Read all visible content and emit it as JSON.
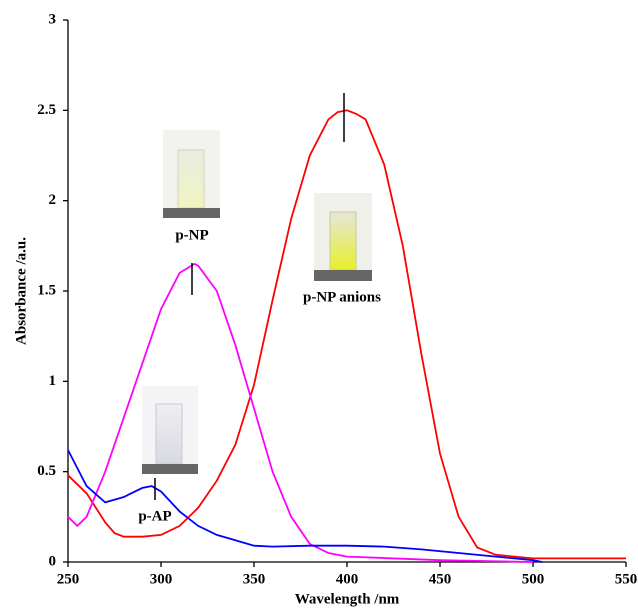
{
  "chart_data": {
    "type": "line",
    "xlabel": "Wavelength /nm",
    "ylabel": "Absorbance /a.u.",
    "xlim": [
      250,
      550
    ],
    "xticks": [
      250,
      300,
      350,
      400,
      450,
      500,
      550
    ],
    "ylim": [
      0,
      3
    ],
    "yticks": [
      0,
      0.5,
      1,
      1.5,
      2,
      2.5,
      3
    ],
    "grid": false,
    "series": [
      {
        "name": "p-NP anions",
        "color": "#ff0000",
        "x": [
          250,
          260,
          270,
          275,
          280,
          290,
          300,
          310,
          320,
          330,
          340,
          350,
          360,
          370,
          380,
          390,
          395,
          400,
          405,
          410,
          420,
          430,
          440,
          450,
          460,
          470,
          480,
          490,
          500,
          550
        ],
        "values": [
          0.48,
          0.38,
          0.22,
          0.16,
          0.14,
          0.14,
          0.15,
          0.2,
          0.3,
          0.45,
          0.65,
          0.98,
          1.45,
          1.9,
          2.25,
          2.45,
          2.49,
          2.5,
          2.48,
          2.45,
          2.2,
          1.75,
          1.15,
          0.6,
          0.25,
          0.08,
          0.04,
          0.03,
          0.02,
          0.02
        ]
      },
      {
        "name": "p-NP",
        "color": "#ff00ff",
        "x": [
          250,
          255,
          260,
          270,
          280,
          290,
          300,
          310,
          318,
          320,
          330,
          340,
          350,
          360,
          370,
          380,
          390,
          400,
          450,
          500
        ],
        "values": [
          0.25,
          0.2,
          0.25,
          0.5,
          0.8,
          1.1,
          1.4,
          1.6,
          1.65,
          1.64,
          1.5,
          1.2,
          0.85,
          0.5,
          0.25,
          0.1,
          0.05,
          0.03,
          0.01,
          0
        ]
      },
      {
        "name": "p-AP",
        "color": "#0000ff",
        "x": [
          250,
          260,
          270,
          280,
          290,
          295,
          300,
          310,
          320,
          330,
          340,
          350,
          360,
          380,
          400,
          420,
          440,
          460,
          480,
          500,
          505
        ],
        "values": [
          0.62,
          0.42,
          0.33,
          0.36,
          0.41,
          0.42,
          0.39,
          0.28,
          0.2,
          0.15,
          0.12,
          0.09,
          0.085,
          0.09,
          0.09,
          0.085,
          0.07,
          0.05,
          0.03,
          0.01,
          0
        ]
      }
    ]
  }
}
